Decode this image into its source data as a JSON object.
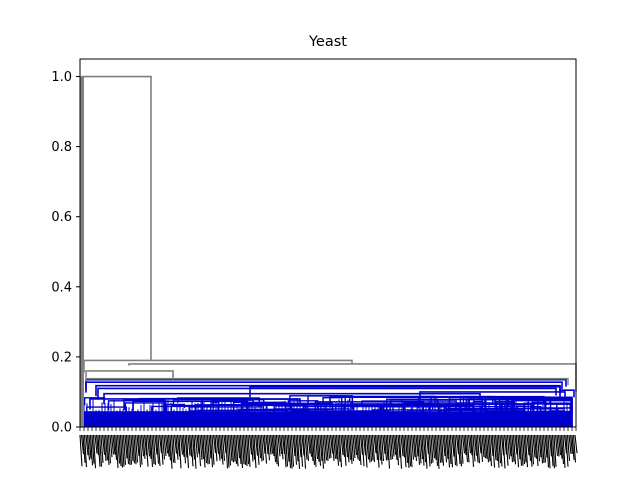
{
  "chart_data": {
    "type": "dendrogram",
    "title": "Yeast",
    "xlabel": "",
    "ylabel": "",
    "ylim": [
      0,
      1.05
    ],
    "yticks": [
      0.0,
      0.2,
      0.4,
      0.6,
      0.8,
      1.0
    ],
    "ytick_labels": [
      "0.0",
      "0.2",
      "0.4",
      "0.6",
      "0.8",
      "1.0"
    ],
    "x_tick_labels": "dense, illegible leaf labels",
    "grid": false,
    "legend": "none",
    "colors": {
      "upper_links": "#808080",
      "cluster_links": "#0000cc",
      "axes": "#000000"
    },
    "links": [
      {
        "color": "gray",
        "left_height": 0.0,
        "right_height": 0.19,
        "merge_height": 1.0
      },
      {
        "color": "gray",
        "left_height": 0.135,
        "right_height": 0.18,
        "merge_height": 0.19
      },
      {
        "color": "gray",
        "left_height": 0.155,
        "right_height": 0.13,
        "merge_height": 0.18
      },
      {
        "color": "gray",
        "left_height": 0.1,
        "right_height": 0.12,
        "merge_height": 0.155
      },
      {
        "color": "gray",
        "left_height": 0.13,
        "right_height": 0.11,
        "merge_height": 0.135
      }
    ]
  }
}
